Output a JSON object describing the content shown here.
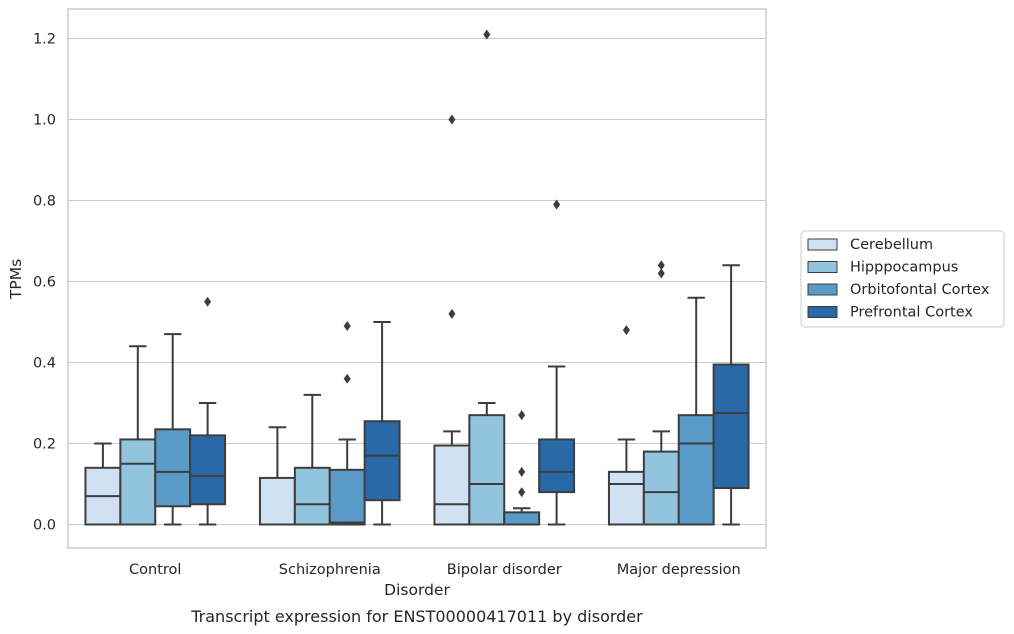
{
  "chart_data": {
    "type": "box",
    "title": "",
    "caption": "Transcript expression for ENST00000417011 by disorder",
    "xlabel": "Disorder",
    "ylabel": "TPMs",
    "ylim": [
      -0.058,
      1.27
    ],
    "yticks": [
      "0.0",
      "0.2",
      "0.4",
      "0.6",
      "0.8",
      "1.0",
      "1.2"
    ],
    "grid": "horizontal",
    "legend_position": "right",
    "categories": [
      "Control",
      "Schizophrenia",
      "Bipolar disorder",
      "Major depression"
    ],
    "series": [
      {
        "name": "Cerebellum",
        "color": "#cfe1f2",
        "boxes": [
          {
            "whislo": 0.0,
            "q1": 0.0,
            "med": 0.07,
            "q3": 0.14,
            "whishi": 0.2,
            "fliers": []
          },
          {
            "whislo": 0.0,
            "q1": 0.0,
            "med": 0.0,
            "q3": 0.115,
            "whishi": 0.24,
            "fliers": []
          },
          {
            "whislo": 0.0,
            "q1": 0.0,
            "med": 0.05,
            "q3": 0.195,
            "whishi": 0.23,
            "fliers": [
              0.52,
              1.0
            ]
          },
          {
            "whislo": 0.0,
            "q1": 0.0,
            "med": 0.1,
            "q3": 0.13,
            "whishi": 0.21,
            "fliers": [
              0.48
            ]
          }
        ]
      },
      {
        "name": "Hipppocampus",
        "color": "#93c4de",
        "boxes": [
          {
            "whislo": 0.0,
            "q1": 0.0,
            "med": 0.15,
            "q3": 0.21,
            "whishi": 0.44,
            "fliers": []
          },
          {
            "whislo": 0.0,
            "q1": 0.0,
            "med": 0.05,
            "q3": 0.14,
            "whishi": 0.32,
            "fliers": []
          },
          {
            "whislo": 0.0,
            "q1": 0.0,
            "med": 0.1,
            "q3": 0.27,
            "whishi": 0.3,
            "fliers": [
              1.21
            ]
          },
          {
            "whislo": 0.0,
            "q1": 0.0,
            "med": 0.08,
            "q3": 0.18,
            "whishi": 0.23,
            "fliers": [
              0.62,
              0.64
            ]
          }
        ]
      },
      {
        "name": "Orbitofontal Cortex",
        "color": "#5a9ac8",
        "boxes": [
          {
            "whislo": 0.0,
            "q1": 0.045,
            "med": 0.13,
            "q3": 0.235,
            "whishi": 0.47,
            "fliers": []
          },
          {
            "whislo": 0.0,
            "q1": 0.0,
            "med": 0.005,
            "q3": 0.135,
            "whishi": 0.21,
            "fliers": [
              0.36,
              0.49
            ]
          },
          {
            "whislo": 0.0,
            "q1": 0.0,
            "med": 0.0,
            "q3": 0.03,
            "whishi": 0.04,
            "fliers": [
              0.08,
              0.13,
              0.27
            ]
          },
          {
            "whislo": 0.0,
            "q1": 0.0,
            "med": 0.2,
            "q3": 0.27,
            "whishi": 0.56,
            "fliers": []
          }
        ]
      },
      {
        "name": "Prefrontal Cortex",
        "color": "#2a69a8",
        "boxes": [
          {
            "whislo": 0.0,
            "q1": 0.05,
            "med": 0.12,
            "q3": 0.22,
            "whishi": 0.3,
            "fliers": [
              0.55
            ]
          },
          {
            "whislo": 0.0,
            "q1": 0.06,
            "med": 0.17,
            "q3": 0.255,
            "whishi": 0.5,
            "fliers": []
          },
          {
            "whislo": 0.0,
            "q1": 0.08,
            "med": 0.13,
            "q3": 0.21,
            "whishi": 0.39,
            "fliers": [
              0.79
            ]
          },
          {
            "whislo": 0.0,
            "q1": 0.09,
            "med": 0.275,
            "q3": 0.395,
            "whishi": 0.64,
            "fliers": []
          }
        ]
      }
    ]
  }
}
